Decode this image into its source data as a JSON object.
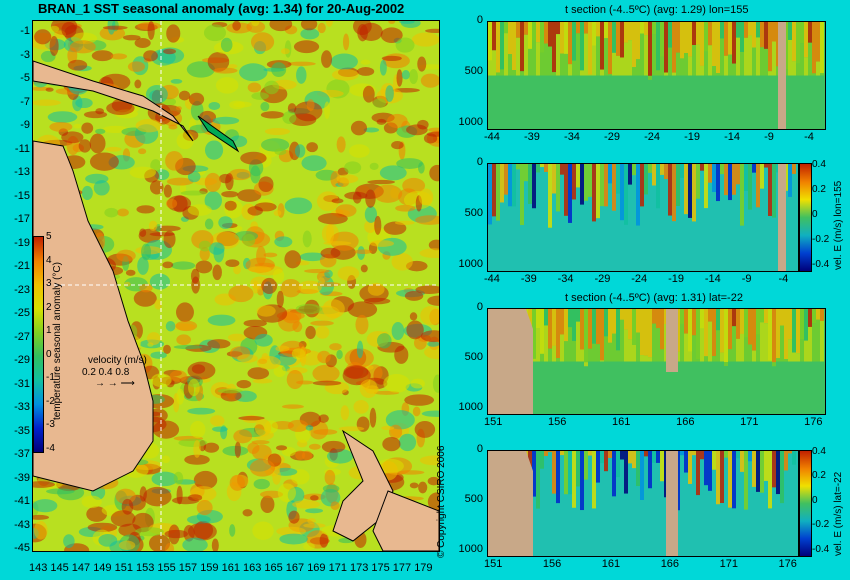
{
  "main_title": "BRAN_1 SST seasonal anomaly (avg: 1.34) for 20-Aug-2002",
  "colors": {
    "background": "#00d8d8",
    "land": "#e8b890",
    "land_section": "#c8a888"
  },
  "palette": [
    "#00007a",
    "#0022cc",
    "#0090e0",
    "#10c0a0",
    "#30c060",
    "#80d020",
    "#d8e000",
    "#f0c000",
    "#f08000",
    "#c02000"
  ],
  "map": {
    "y_ticks": [
      "-1",
      "-3",
      "-5",
      "-7",
      "-9",
      "-11",
      "-13",
      "-15",
      "-17",
      "-19",
      "-21",
      "-23",
      "-25",
      "-27",
      "-29",
      "-31",
      "-33",
      "-35",
      "-37",
      "-39",
      "-41",
      "-43",
      "-45"
    ],
    "x_ticks": [
      "143",
      "145",
      "147",
      "149",
      "151",
      "153",
      "155",
      "157",
      "159",
      "161",
      "163",
      "165",
      "167",
      "169",
      "171",
      "173",
      "175",
      "177",
      "179"
    ],
    "colorbar_ticks": [
      "5",
      "4",
      "3",
      "2",
      "1",
      "0",
      "-1",
      "-2",
      "-3",
      "-4"
    ],
    "colorbar_label": "temperature seasonal anomaly (°C)",
    "velocity_label": "velocity (m/s)",
    "velocity_scale": "0.2 0.4 0.8"
  },
  "panels": [
    {
      "title": "t section (-4..5ºC) (avg: 1.29) lon=155",
      "x_ticks": [
        "-44",
        "-39",
        "-34",
        "-29",
        "-24",
        "-19",
        "-14",
        "-9",
        "-4"
      ],
      "y_ticks": [
        "0",
        "500",
        "1000"
      ]
    },
    {
      "title": "",
      "x_ticks": [
        "-44",
        "-39",
        "-34",
        "-29",
        "-24",
        "-19",
        "-14",
        "-9",
        "-4"
      ],
      "y_ticks": [
        "0",
        "500",
        "1000"
      ],
      "colorbar_ticks": [
        "0.4",
        "0.2",
        "0",
        "-0.2",
        "-0.4"
      ],
      "colorbar_label": "vel. E (m/s) lon=155"
    },
    {
      "title": "t section (-4..5ºC) (avg: 1.31) lat=-22",
      "x_ticks": [
        "151",
        "156",
        "161",
        "166",
        "171",
        "176"
      ],
      "y_ticks": [
        "0",
        "500",
        "1000"
      ]
    },
    {
      "title": "",
      "x_ticks": [
        "151",
        "156",
        "161",
        "166",
        "171",
        "176"
      ],
      "y_ticks": [
        "0",
        "500",
        "1000"
      ],
      "colorbar_ticks": [
        "0.4",
        "0.2",
        "0",
        "-0.2",
        "-0.4"
      ],
      "colorbar_label": "vel. E (m/s) lat=-22"
    }
  ],
  "copyright": "© Copyright CSIRO 2006"
}
